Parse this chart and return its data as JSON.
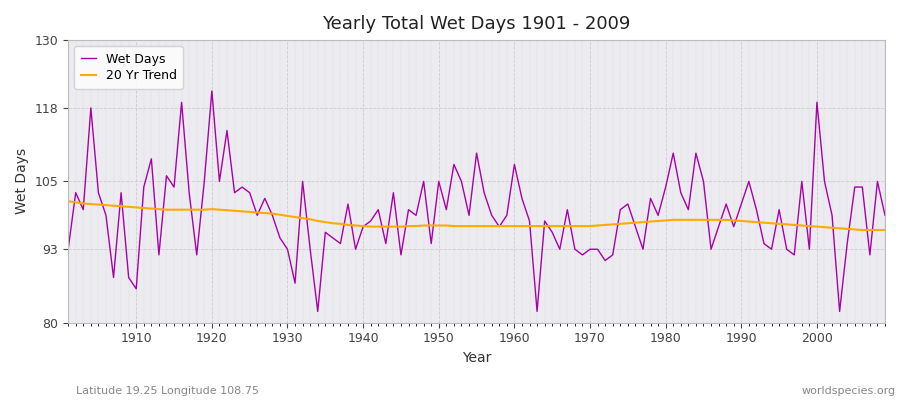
{
  "title": "Yearly Total Wet Days 1901 - 2009",
  "xlabel": "Year",
  "ylabel": "Wet Days",
  "xlim": [
    1901,
    2009
  ],
  "ylim": [
    80,
    130
  ],
  "yticks": [
    80,
    93,
    105,
    118,
    130
  ],
  "xticks": [
    1910,
    1920,
    1930,
    1940,
    1950,
    1960,
    1970,
    1980,
    1990,
    2000
  ],
  "wet_days_color": "#aa00aa",
  "trend_color": "#ffaa00",
  "figure_bg_color": "#ffffff",
  "plot_bg_color": "#ebebf0",
  "legend_labels": [
    "Wet Days",
    "20 Yr Trend"
  ],
  "bottom_left_text": "Latitude 19.25 Longitude 108.75",
  "bottom_right_text": "worldspecies.org",
  "years": [
    1901,
    1902,
    1903,
    1904,
    1905,
    1906,
    1907,
    1908,
    1909,
    1910,
    1911,
    1912,
    1913,
    1914,
    1915,
    1916,
    1917,
    1918,
    1919,
    1920,
    1921,
    1922,
    1923,
    1924,
    1925,
    1926,
    1927,
    1928,
    1929,
    1930,
    1931,
    1932,
    1933,
    1934,
    1935,
    1936,
    1937,
    1938,
    1939,
    1940,
    1941,
    1942,
    1943,
    1944,
    1945,
    1946,
    1947,
    1948,
    1949,
    1950,
    1951,
    1952,
    1953,
    1954,
    1955,
    1956,
    1957,
    1958,
    1959,
    1960,
    1961,
    1962,
    1963,
    1964,
    1965,
    1966,
    1967,
    1968,
    1969,
    1970,
    1971,
    1972,
    1973,
    1974,
    1975,
    1976,
    1977,
    1978,
    1979,
    1980,
    1981,
    1982,
    1983,
    1984,
    1985,
    1986,
    1987,
    1988,
    1989,
    1990,
    1991,
    1992,
    1993,
    1994,
    1995,
    1996,
    1997,
    1998,
    1999,
    2000,
    2001,
    2002,
    2003,
    2004,
    2005,
    2006,
    2007,
    2008,
    2009
  ],
  "wet_days": [
    93,
    103,
    100,
    118,
    103,
    99,
    88,
    103,
    88,
    86,
    104,
    109,
    92,
    106,
    104,
    119,
    103,
    92,
    105,
    121,
    105,
    114,
    103,
    104,
    103,
    99,
    102,
    99,
    95,
    93,
    87,
    105,
    93,
    82,
    96,
    95,
    94,
    101,
    93,
    97,
    98,
    100,
    94,
    103,
    92,
    100,
    99,
    105,
    94,
    105,
    100,
    108,
    105,
    99,
    110,
    103,
    99,
    97,
    99,
    108,
    102,
    98,
    82,
    98,
    96,
    93,
    100,
    93,
    92,
    93,
    93,
    91,
    92,
    100,
    101,
    97,
    93,
    102,
    99,
    104,
    110,
    103,
    100,
    110,
    105,
    93,
    97,
    101,
    97,
    101,
    105,
    100,
    94,
    93,
    100,
    93,
    92,
    105,
    93,
    119,
    105,
    99,
    82,
    94,
    104,
    104,
    92,
    105,
    99
  ],
  "trend": [
    101.5,
    101.3,
    101.1,
    101.0,
    100.9,
    100.8,
    100.7,
    100.6,
    100.5,
    100.4,
    100.3,
    100.2,
    100.1,
    100.0,
    100.0,
    100.0,
    100.0,
    100.0,
    100.0,
    100.1,
    100.0,
    99.9,
    99.8,
    99.7,
    99.6,
    99.5,
    99.4,
    99.3,
    99.1,
    98.9,
    98.7,
    98.5,
    98.3,
    98.0,
    97.8,
    97.6,
    97.5,
    97.3,
    97.2,
    97.1,
    97.0,
    97.0,
    97.0,
    97.0,
    97.0,
    97.1,
    97.1,
    97.2,
    97.2,
    97.2,
    97.2,
    97.1,
    97.1,
    97.1,
    97.1,
    97.1,
    97.1,
    97.1,
    97.1,
    97.1,
    97.1,
    97.1,
    97.1,
    97.1,
    97.1,
    97.1,
    97.1,
    97.1,
    97.1,
    97.1,
    97.2,
    97.3,
    97.4,
    97.5,
    97.6,
    97.7,
    97.8,
    97.9,
    98.0,
    98.1,
    98.2,
    98.2,
    98.2,
    98.2,
    98.2,
    98.2,
    98.2,
    98.2,
    98.1,
    98.0,
    97.9,
    97.8,
    97.7,
    97.6,
    97.5,
    97.4,
    97.3,
    97.2,
    97.1,
    97.0,
    96.9,
    96.8,
    96.7,
    96.6,
    96.5,
    96.4,
    96.4,
    96.4,
    96.4
  ]
}
